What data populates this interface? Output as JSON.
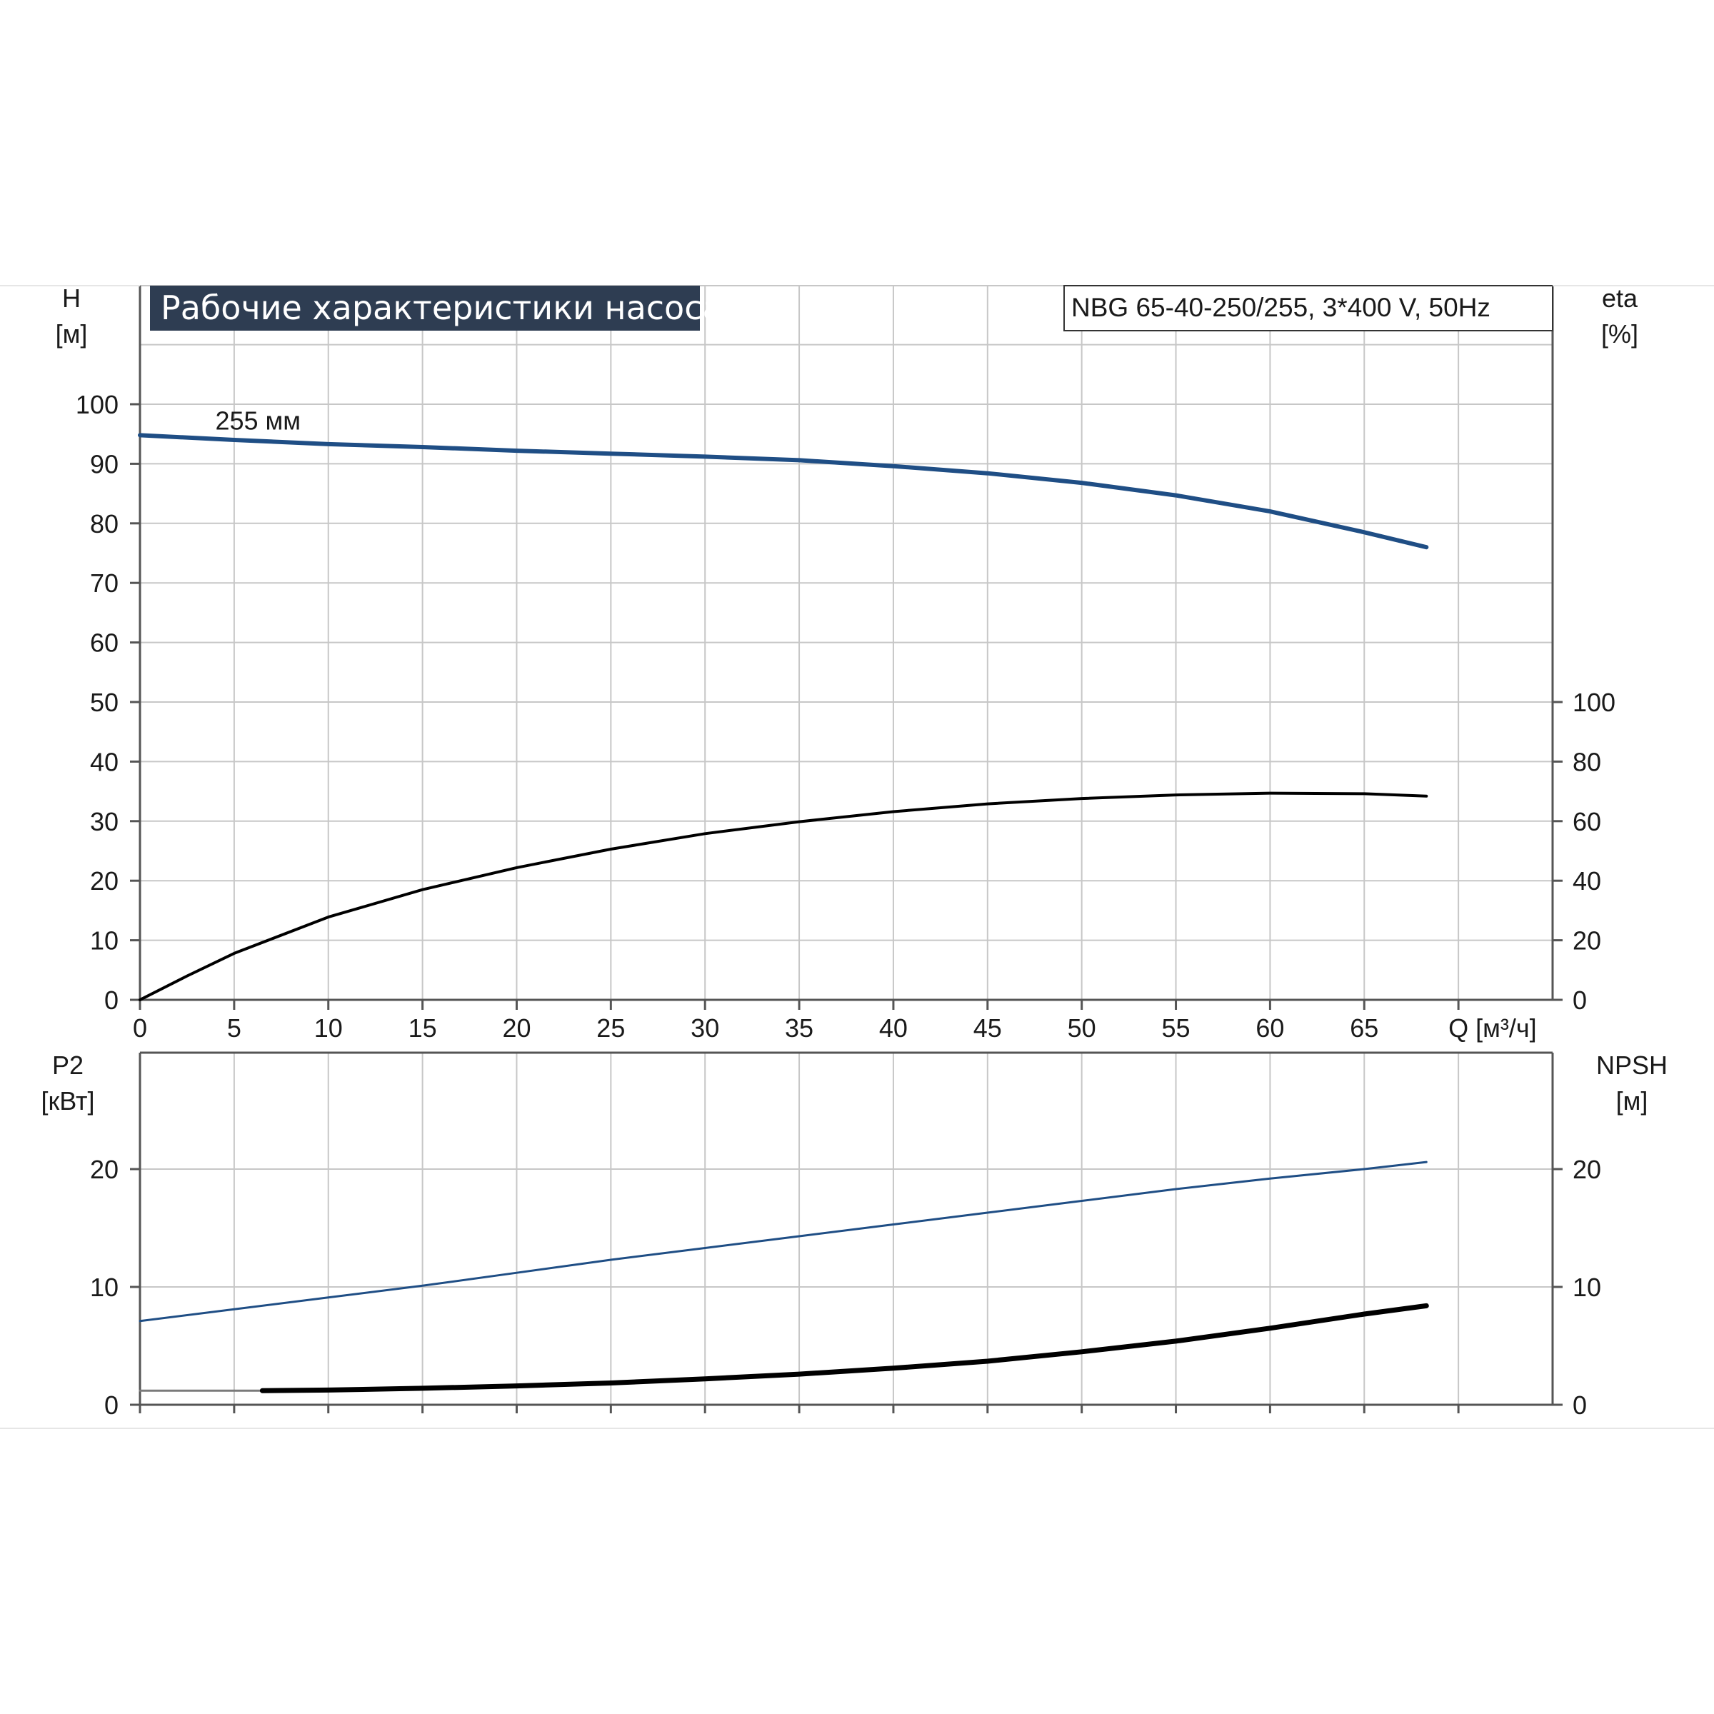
{
  "chart_data": [
    {
      "type": "line",
      "title": "Рабочие характеристики насоса",
      "model_label": "NBG 65-40-250/255, 3*400 V, 50Hz",
      "xlabel": "Q [м³/ч]",
      "xlim": [
        0,
        75
      ],
      "x_ticks": [
        "0",
        "5",
        "10",
        "15",
        "20",
        "25",
        "30",
        "35",
        "40",
        "45",
        "50",
        "55",
        "60",
        "65"
      ],
      "left_axis": {
        "label": "H",
        "unit": "[м]",
        "ylim": [
          0,
          100
        ],
        "ticks": [
          "0",
          "10",
          "20",
          "30",
          "40",
          "50",
          "60",
          "70",
          "80",
          "90",
          "100"
        ]
      },
      "right_axis": {
        "label": "eta",
        "unit": "[%]",
        "ylim": [
          0,
          200
        ],
        "ticks": [
          "0",
          "20",
          "40",
          "60",
          "80",
          "100"
        ]
      },
      "grid": true,
      "series": [
        {
          "name": "255 мм",
          "axis": "left",
          "color": "#1f4e85",
          "x": [
            0,
            5,
            10,
            15,
            20,
            25,
            30,
            35,
            40,
            45,
            50,
            55,
            60,
            65,
            68.3
          ],
          "y": [
            94.8,
            94.0,
            93.3,
            92.8,
            92.2,
            91.7,
            91.2,
            90.6,
            89.6,
            88.4,
            86.8,
            84.7,
            82.0,
            78.5,
            76.0
          ]
        },
        {
          "axis": "right",
          "color": "#000000",
          "x": [
            0,
            2.5,
            5,
            10,
            15,
            20,
            25,
            30,
            35,
            40,
            45,
            50,
            55,
            60,
            65,
            68.3
          ],
          "y": [
            0,
            8,
            15.6,
            27.8,
            37.0,
            44.4,
            50.6,
            55.8,
            59.8,
            63.2,
            65.8,
            67.6,
            68.8,
            69.4,
            69.2,
            68.4
          ]
        }
      ]
    },
    {
      "type": "line",
      "xlim": [
        0,
        75
      ],
      "left_axis": {
        "label": "P2",
        "unit": "[кВт]",
        "ylim": [
          0,
          30
        ],
        "ticks": [
          "0",
          "10",
          "20"
        ]
      },
      "right_axis": {
        "label": "NPSH",
        "unit": "[м]",
        "ylim": [
          0,
          30
        ],
        "ticks": [
          "0",
          "10",
          "20"
        ]
      },
      "grid": true,
      "series": [
        {
          "axis": "left",
          "color": "#1f4e85",
          "x": [
            0,
            5,
            10,
            15,
            20,
            25,
            30,
            35,
            40,
            45,
            50,
            55,
            60,
            65,
            68.3
          ],
          "y": [
            7.1,
            8.1,
            9.1,
            10.1,
            11.2,
            12.3,
            13.3,
            14.3,
            15.3,
            16.3,
            17.3,
            18.3,
            19.2,
            20.0,
            20.6
          ]
        },
        {
          "axis": "right",
          "color": "#000000",
          "x": [
            6.5,
            10,
            15,
            20,
            25,
            30,
            35,
            40,
            45,
            50,
            55,
            60,
            65,
            68.3
          ],
          "y": [
            1.2,
            1.25,
            1.4,
            1.6,
            1.85,
            2.2,
            2.6,
            3.1,
            3.7,
            4.5,
            5.4,
            6.5,
            7.7,
            8.4
          ]
        },
        {
          "axis": "right",
          "color": "#7a7a7a",
          "x": [
            0,
            6.5
          ],
          "y": [
            1.2,
            1.2
          ]
        }
      ]
    }
  ]
}
